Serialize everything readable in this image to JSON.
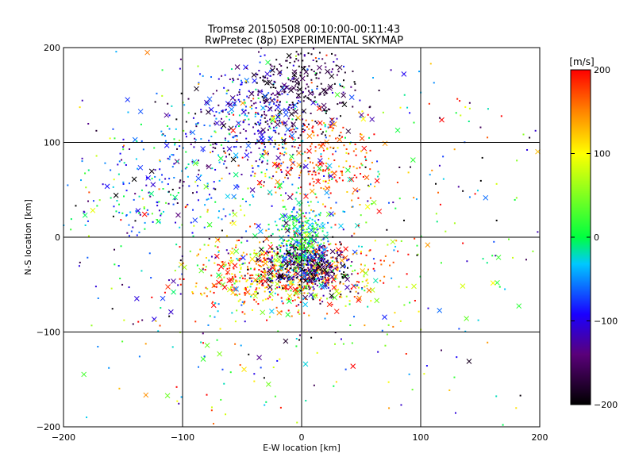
{
  "chart_data": {
    "type": "scatter",
    "title": "Tromsø 20150508 00:10:00-00:11:43",
    "subtitle": "RwPretec (8p) EXPERIMENTAL SKYMAP",
    "xlabel": "E-W location [km]",
    "ylabel": "N-S location [km]",
    "xlim": [
      -200,
      200
    ],
    "ylim": [
      -200,
      200
    ],
    "xticks": [
      "−200",
      "−100",
      "0",
      "100",
      "200"
    ],
    "yticks": [
      "−200",
      "−100",
      "0",
      "100",
      "200"
    ],
    "grid": true,
    "colorbar": {
      "label": "[m/s]",
      "range": [
        -200,
        200
      ],
      "ticks": [
        "200",
        "100",
        "0",
        "−100",
        "−200"
      ],
      "colors": [
        "#000000",
        "#5a007a",
        "#1a00ff",
        "#00c8ff",
        "#00ff40",
        "#ffff00",
        "#ff8000",
        "#ff0000"
      ]
    },
    "markers": [
      "dot",
      "x"
    ],
    "clusters": [
      {
        "cx": -35,
        "cy": 120,
        "sx": 30,
        "sy": 35,
        "n": 420,
        "vmean": -100,
        "vsd": 55
      },
      {
        "cx": 5,
        "cy": 160,
        "sx": 22,
        "sy": 28,
        "n": 230,
        "vmean": -170,
        "vsd": 30
      },
      {
        "cx": 15,
        "cy": 80,
        "sx": 25,
        "sy": 25,
        "n": 220,
        "vmean": 170,
        "vsd": 40
      },
      {
        "cx": -15,
        "cy": -40,
        "sx": 40,
        "sy": 18,
        "n": 560,
        "vmean": 150,
        "vsd": 70
      },
      {
        "cx": 5,
        "cy": -30,
        "sx": 18,
        "sy": 15,
        "n": 420,
        "vmean": -150,
        "vsd": 60
      },
      {
        "cx": 0,
        "cy": 0,
        "sx": 10,
        "sy": 22,
        "n": 300,
        "vmean": 0,
        "vsd": 45
      },
      {
        "cx": -120,
        "cy": 60,
        "sx": 40,
        "sy": 40,
        "n": 200,
        "vmean": -60,
        "vsd": 60
      },
      {
        "cx": 0,
        "cy": 0,
        "sx": 110,
        "sy": 110,
        "n": 700,
        "vmean": 0,
        "vsd": 120
      }
    ]
  }
}
